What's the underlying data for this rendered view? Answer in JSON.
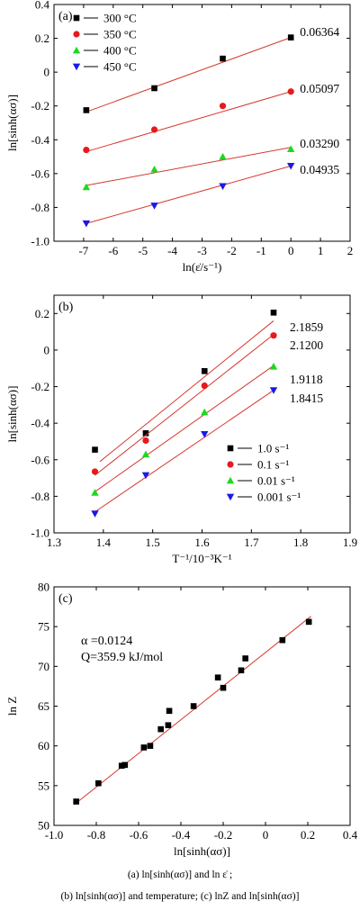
{
  "captions": {
    "line1": "(a)    ln[sinh(ασ)]     and     ln ε̇   ;",
    "line2": "(b) ln[sinh(ασ)] and temperature; (c) lnZ and ln[sinh(ασ)]"
  },
  "chart_data": [
    {
      "panel": "(a)",
      "type": "scatter",
      "xlabel": "ln(ε̇/s⁻¹)",
      "ylabel": "ln[sinh(ασ)]",
      "xlim": [
        -8,
        2
      ],
      "ylim": [
        -1.0,
        0.4
      ],
      "xticks": [
        -7,
        -6,
        -5,
        -4,
        -3,
        -2,
        -1,
        0,
        1,
        2
      ],
      "yticks": [
        -1.0,
        -0.8,
        -0.6,
        -0.4,
        -0.2,
        0,
        0.2,
        0.4
      ],
      "legend_position": "top-left",
      "series": [
        {
          "name": "300 °C",
          "marker": "square",
          "color": "#000000",
          "x": [
            -6.91,
            -4.61,
            -2.3,
            0.0
          ],
          "y": [
            -0.225,
            -0.095,
            0.08,
            0.205
          ],
          "fit": [
            [
              -6.91,
              -0.235
            ],
            [
              0.0,
              0.205
            ]
          ],
          "slope_label": "0.06364"
        },
        {
          "name": "350 °C",
          "marker": "circle",
          "color": "#e8191c",
          "x": [
            -6.91,
            -4.61,
            -2.3,
            0.0
          ],
          "y": [
            -0.46,
            -0.34,
            -0.2,
            -0.115
          ],
          "fit": [
            [
              -6.91,
              -0.47
            ],
            [
              0.0,
              -0.115
            ]
          ],
          "slope_label": "0.05097"
        },
        {
          "name": "400 °C",
          "marker": "triangle-up",
          "color": "#1ed81e",
          "x": [
            -6.91,
            -4.61,
            -2.3,
            0.0
          ],
          "y": [
            -0.68,
            -0.575,
            -0.5,
            -0.455
          ],
          "fit": [
            [
              -6.91,
              -0.67
            ],
            [
              0.0,
              -0.445
            ]
          ],
          "slope_label": "0.03290"
        },
        {
          "name": "450 °C",
          "marker": "triangle-down",
          "color": "#1a1ae6",
          "x": [
            -6.91,
            -4.61,
            -2.3,
            0.0
          ],
          "y": [
            -0.895,
            -0.79,
            -0.675,
            -0.555
          ],
          "fit": [
            [
              -6.91,
              -0.895
            ],
            [
              0.0,
              -0.555
            ]
          ],
          "slope_label": "0.04935"
        }
      ]
    },
    {
      "panel": "(b)",
      "type": "scatter",
      "xlabel": "T⁻¹/10⁻³K⁻¹",
      "ylabel": "ln[sinh(ασ)]",
      "xlim": [
        1.3,
        1.9
      ],
      "ylim": [
        -1.0,
        0.3
      ],
      "xticks": [
        1.3,
        1.4,
        1.5,
        1.6,
        1.7,
        1.8,
        1.9
      ],
      "yticks": [
        -1.0,
        -0.8,
        -0.6,
        -0.4,
        -0.2,
        0,
        0.2
      ],
      "legend_position": "bottom-right",
      "series": [
        {
          "name": "1.0 s⁻¹",
          "marker": "square",
          "color": "#000000",
          "x": [
            1.383,
            1.486,
            1.605,
            1.745
          ],
          "y": [
            -0.545,
            -0.455,
            -0.115,
            0.205
          ],
          "fit": [
            [
              1.393,
              -0.61
            ],
            [
              1.745,
              0.16
            ]
          ],
          "slope_label": "2.1859"
        },
        {
          "name": "0.1 s⁻¹",
          "marker": "circle",
          "color": "#e8191c",
          "x": [
            1.383,
            1.486,
            1.605,
            1.745
          ],
          "y": [
            -0.665,
            -0.495,
            -0.195,
            0.08
          ],
          "fit": [
            [
              1.383,
              -0.685
            ],
            [
              1.745,
              0.085
            ]
          ],
          "slope_label": "2.1200"
        },
        {
          "name": "0.01 s⁻¹",
          "marker": "triangle-up",
          "color": "#1ed81e",
          "x": [
            1.383,
            1.486,
            1.605,
            1.745
          ],
          "y": [
            -0.78,
            -0.57,
            -0.34,
            -0.09
          ],
          "fit": [
            [
              1.383,
              -0.775
            ],
            [
              1.745,
              -0.085
            ]
          ],
          "slope_label": "1.9118"
        },
        {
          "name": "0.001 s⁻¹",
          "marker": "triangle-down",
          "color": "#1a1ae6",
          "x": [
            1.383,
            1.486,
            1.605,
            1.745
          ],
          "y": [
            -0.895,
            -0.685,
            -0.46,
            -0.22
          ],
          "fit": [
            [
              1.383,
              -0.885
            ],
            [
              1.745,
              -0.22
            ]
          ],
          "slope_label": "1.8415"
        }
      ]
    },
    {
      "panel": "(c)",
      "type": "scatter",
      "xlabel": "ln[sinh(ασ)]",
      "ylabel": "ln Z",
      "xlim": [
        -1.0,
        0.4
      ],
      "ylim": [
        50,
        80
      ],
      "xticks": [
        -1.0,
        -0.8,
        -0.6,
        -0.4,
        -0.2,
        0,
        0.2,
        0.4
      ],
      "yticks": [
        50,
        55,
        60,
        65,
        70,
        75,
        80
      ],
      "annotation_line1": "α =0.0124",
      "annotation_line2": "Q=359.9  kJ/mol",
      "series": [
        {
          "marker": "square",
          "color": "#000000",
          "x": [
            -0.895,
            -0.79,
            -0.68,
            -0.665,
            -0.575,
            -0.545,
            -0.495,
            -0.46,
            -0.455,
            -0.34,
            -0.225,
            -0.2,
            -0.115,
            -0.095,
            0.08,
            0.205
          ],
          "y": [
            53.0,
            55.3,
            57.5,
            57.6,
            59.8,
            60.0,
            62.1,
            62.6,
            64.4,
            65.0,
            68.6,
            67.3,
            69.5,
            71.0,
            73.3,
            75.6
          ],
          "fit": [
            [
              -0.905,
              52.6
            ],
            [
              0.215,
              76.3
            ]
          ]
        }
      ]
    }
  ]
}
